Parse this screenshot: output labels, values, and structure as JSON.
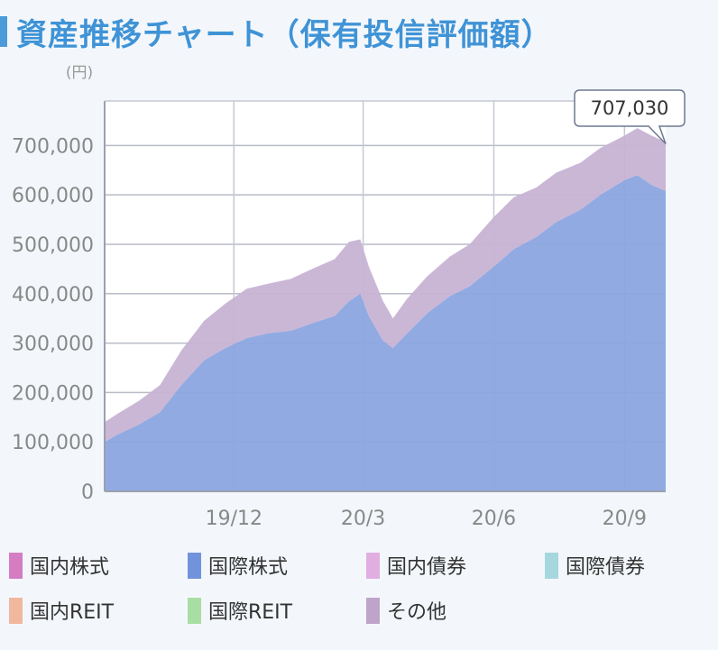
{
  "title": "資産推移チャート（保有投信評価額）",
  "colors": {
    "accent": "#3f93d6",
    "series_domestic_stock": "#d67cc2",
    "series_intl_stock": "#7093dc",
    "series_domestic_bond": "#e0aee1",
    "series_intl_bond": "#a6d7df",
    "series_domestic_reit": "#f2b79f",
    "series_intl_reit": "#a9dea3",
    "series_other": "#bea4c8"
  },
  "chart_data": {
    "type": "area",
    "unit_label": "(円)",
    "ylim": [
      0,
      790000
    ],
    "y_ticks": [
      0,
      100000,
      200000,
      300000,
      400000,
      500000,
      600000,
      700000
    ],
    "y_tick_labels": [
      "0",
      "100,000",
      "200,000",
      "300,000",
      "400,000",
      "500,000",
      "600,000",
      "700,000"
    ],
    "x_range": [
      "2019-09-01",
      "2020-09-30"
    ],
    "x_ticks": [
      "2019-12-01",
      "2020-03-01",
      "2020-06-01",
      "2020-09-01"
    ],
    "x_tick_labels": [
      "19/12",
      "20/3",
      "20/6",
      "20/9"
    ],
    "grid": true,
    "legend_placement": "bottom",
    "stacked": true,
    "series": [
      {
        "name": "国際株式",
        "color": "#8ba5e0",
        "points": [
          [
            "2019-09-01",
            100000
          ],
          [
            "2019-09-10",
            115000
          ],
          [
            "2019-09-25",
            135000
          ],
          [
            "2019-10-10",
            160000
          ],
          [
            "2019-10-25",
            215000
          ],
          [
            "2019-11-10",
            265000
          ],
          [
            "2019-11-25",
            290000
          ],
          [
            "2019-12-10",
            310000
          ],
          [
            "2019-12-25",
            320000
          ],
          [
            "2020-01-10",
            325000
          ],
          [
            "2020-01-25",
            340000
          ],
          [
            "2020-02-10",
            355000
          ],
          [
            "2020-02-20",
            385000
          ],
          [
            "2020-02-28",
            400000
          ],
          [
            "2020-03-05",
            355000
          ],
          [
            "2020-03-15",
            305000
          ],
          [
            "2020-03-22",
            290000
          ],
          [
            "2020-04-01",
            320000
          ],
          [
            "2020-04-15",
            360000
          ],
          [
            "2020-05-01",
            395000
          ],
          [
            "2020-05-15",
            415000
          ],
          [
            "2020-06-01",
            455000
          ],
          [
            "2020-06-15",
            490000
          ],
          [
            "2020-07-01",
            515000
          ],
          [
            "2020-07-15",
            545000
          ],
          [
            "2020-08-01",
            570000
          ],
          [
            "2020-08-15",
            600000
          ],
          [
            "2020-09-01",
            630000
          ],
          [
            "2020-09-10",
            640000
          ],
          [
            "2020-09-20",
            620000
          ],
          [
            "2020-09-30",
            608000
          ]
        ]
      },
      {
        "name": "その他",
        "color": "#c7b3d4",
        "points": [
          [
            "2019-09-01",
            40000
          ],
          [
            "2019-09-10",
            42000
          ],
          [
            "2019-09-25",
            48000
          ],
          [
            "2019-10-10",
            55000
          ],
          [
            "2019-10-25",
            70000
          ],
          [
            "2019-11-10",
            80000
          ],
          [
            "2019-11-25",
            90000
          ],
          [
            "2019-12-10",
            100000
          ],
          [
            "2019-12-25",
            100000
          ],
          [
            "2020-01-10",
            105000
          ],
          [
            "2020-01-25",
            110000
          ],
          [
            "2020-02-10",
            115000
          ],
          [
            "2020-02-20",
            120000
          ],
          [
            "2020-02-28",
            110000
          ],
          [
            "2020-03-05",
            100000
          ],
          [
            "2020-03-15",
            80000
          ],
          [
            "2020-03-22",
            60000
          ],
          [
            "2020-04-01",
            70000
          ],
          [
            "2020-04-15",
            75000
          ],
          [
            "2020-05-01",
            80000
          ],
          [
            "2020-05-15",
            85000
          ],
          [
            "2020-06-01",
            100000
          ],
          [
            "2020-06-15",
            105000
          ],
          [
            "2020-07-01",
            100000
          ],
          [
            "2020-07-15",
            100000
          ],
          [
            "2020-08-01",
            95000
          ],
          [
            "2020-08-15",
            95000
          ],
          [
            "2020-09-01",
            90000
          ],
          [
            "2020-09-10",
            95000
          ],
          [
            "2020-09-20",
            100000
          ],
          [
            "2020-09-30",
            99030
          ]
        ]
      }
    ],
    "annotation": {
      "date": "2020-09-30",
      "value": 707030,
      "label": "707,030"
    }
  },
  "legend": [
    {
      "label": "国内株式",
      "color": "#d67cc2"
    },
    {
      "label": "国際株式",
      "color": "#7093dc"
    },
    {
      "label": "国内債券",
      "color": "#e0aee1"
    },
    {
      "label": "国際債券",
      "color": "#a6d7df"
    },
    {
      "label": "国内REIT",
      "color": "#f2b79f"
    },
    {
      "label": "国際REIT",
      "color": "#a9dea3"
    },
    {
      "label": "その他",
      "color": "#bea4c8"
    }
  ]
}
